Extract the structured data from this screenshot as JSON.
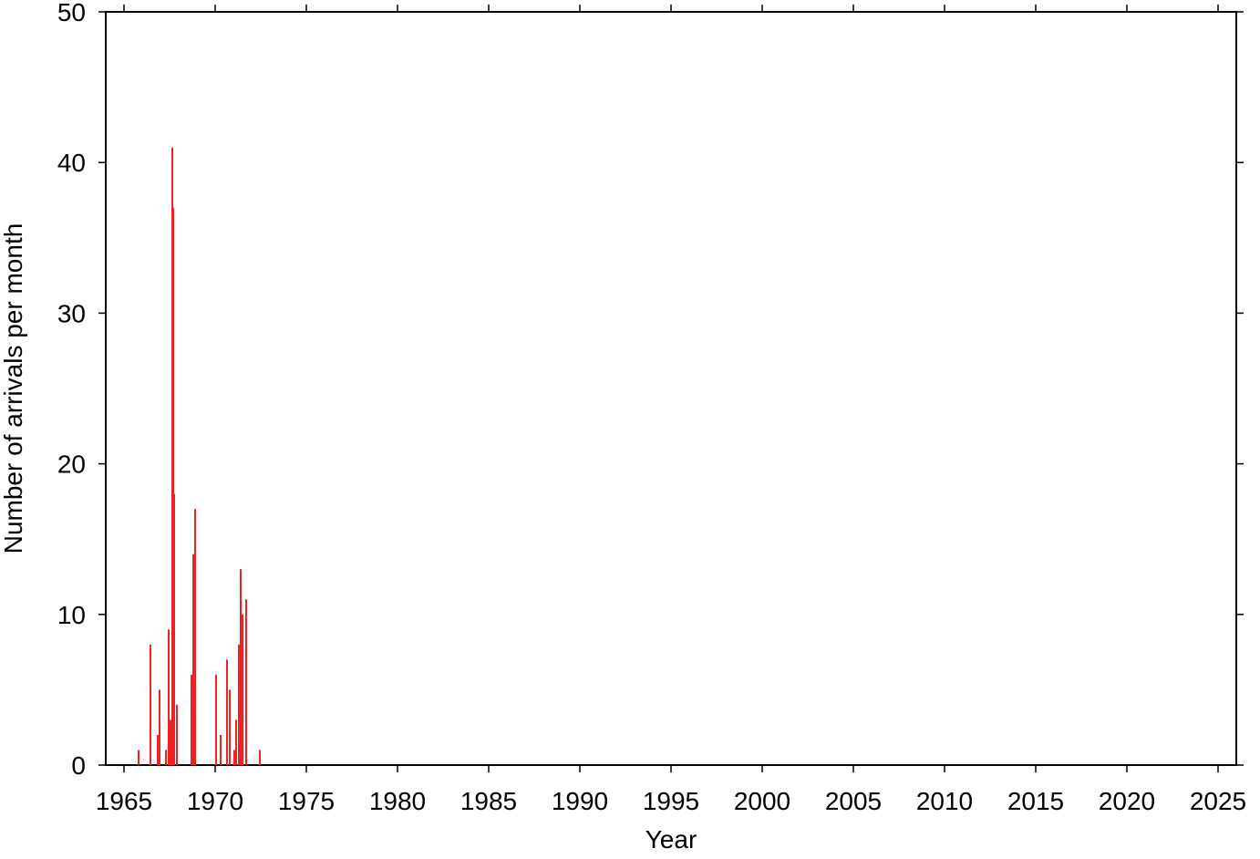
{
  "chart_data": {
    "type": "bar",
    "x_label": "Year",
    "y_label": "Number of arrivals per month",
    "x": [
      1965.8,
      1966.45,
      1966.85,
      1966.95,
      1967.3,
      1967.45,
      1967.55,
      1967.65,
      1967.7,
      1967.75,
      1967.9,
      1968.7,
      1968.8,
      1968.9,
      1970.05,
      1970.3,
      1970.65,
      1970.8,
      1971.05,
      1971.15,
      1971.3,
      1971.4,
      1971.5,
      1971.7,
      1972.45
    ],
    "values": [
      1,
      8,
      2,
      5,
      1,
      9,
      3,
      41,
      37,
      18,
      4,
      6,
      14,
      17,
      6,
      2,
      7,
      5,
      1,
      3,
      8,
      13,
      10,
      11,
      1
    ],
    "color": "#ee2222",
    "xlim": [
      1964,
      2026
    ],
    "xticks": [
      1965,
      1970,
      1975,
      1980,
      1985,
      1990,
      1995,
      2000,
      2005,
      2010,
      2015,
      2020,
      2025
    ],
    "ylim": [
      0,
      50
    ],
    "yticks": [
      0,
      10,
      20,
      30,
      40,
      50
    ],
    "grid": false
  }
}
